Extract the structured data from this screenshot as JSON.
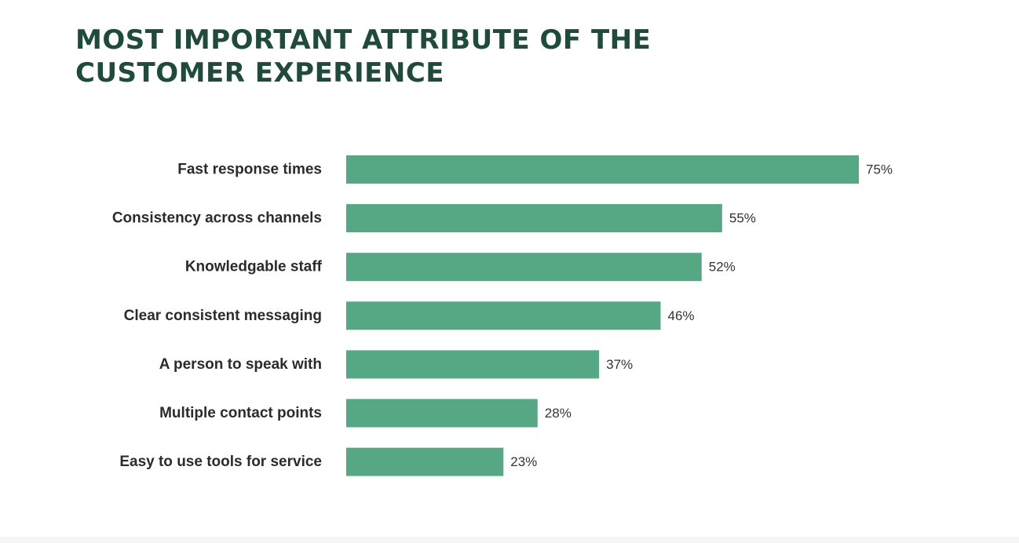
{
  "chart_data": {
    "type": "bar",
    "orientation": "horizontal",
    "title_lines": [
      "MOST IMPORTANT ATTRIBUTE OF THE",
      "CUSTOMER EXPERIENCE"
    ],
    "categories": [
      "Fast response times",
      "Consistency across channels",
      "Knowledgable staff",
      "Clear consistent messaging",
      "A person to speak with",
      "Multiple contact points",
      "Easy to use tools for service"
    ],
    "values": [
      75,
      55,
      52,
      46,
      37,
      28,
      23
    ],
    "value_labels": [
      "75%",
      "55%",
      "52%",
      "46%",
      "37%",
      "28%",
      "23%"
    ],
    "xlim": [
      0,
      100
    ],
    "grid": false,
    "bar_color": "#56a885"
  }
}
